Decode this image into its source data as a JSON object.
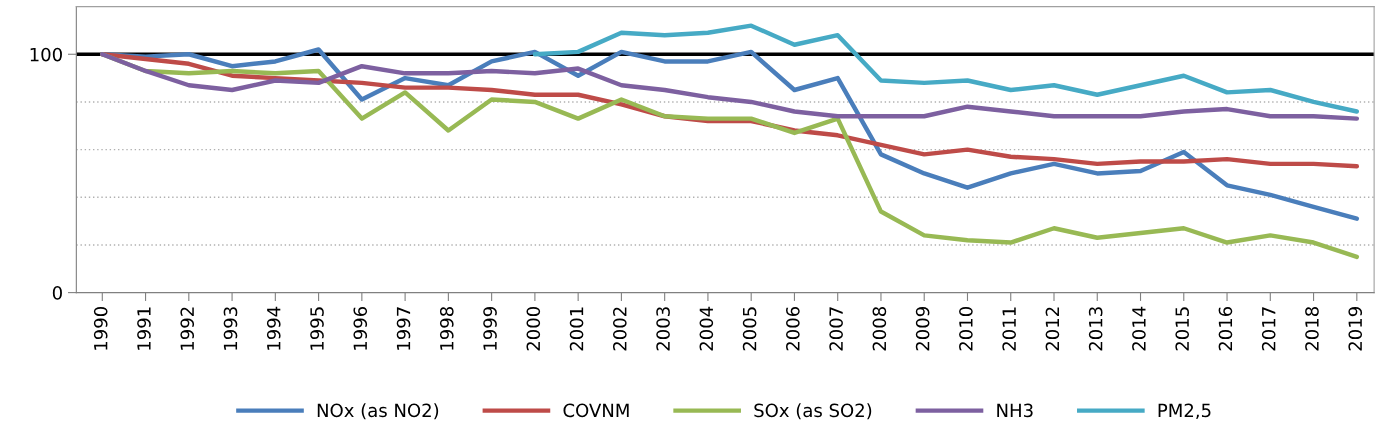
{
  "chart_data": {
    "type": "line",
    "categories": [
      "1990",
      "1991",
      "1992",
      "1993",
      "1994",
      "1995",
      "1996",
      "1997",
      "1998",
      "1999",
      "2000",
      "2001",
      "2002",
      "2003",
      "2004",
      "2005",
      "2006",
      "2007",
      "2008",
      "2009",
      "2010",
      "2011",
      "2012",
      "2013",
      "2014",
      "2015",
      "2016",
      "2017",
      "2018",
      "2019"
    ],
    "series": [
      {
        "name": "NOx (as NO2)",
        "color": "#4a7ebb",
        "values": [
          100,
          99,
          100,
          95,
          97,
          102,
          81,
          90,
          87,
          97,
          101,
          91,
          101,
          97,
          97,
          101,
          85,
          90,
          58,
          50,
          44,
          50,
          54,
          50,
          51,
          59,
          45,
          41,
          36,
          31
        ]
      },
      {
        "name": "COVNM",
        "color": "#be4b48",
        "values": [
          100,
          98,
          96,
          91,
          90,
          89,
          88,
          86,
          86,
          85,
          83,
          83,
          79,
          74,
          72,
          72,
          68,
          66,
          62,
          58,
          60,
          57,
          56,
          54,
          55,
          55,
          56,
          54,
          54,
          53
        ]
      },
      {
        "name": "SOx (as SO2)",
        "color": "#98b954",
        "values": [
          100,
          93,
          92,
          93,
          92,
          93,
          73,
          84,
          68,
          81,
          80,
          73,
          81,
          74,
          73,
          73,
          67,
          73,
          34,
          24,
          22,
          21,
          27,
          23,
          25,
          27,
          21,
          24,
          21,
          15
        ]
      },
      {
        "name": "NH3",
        "color": "#7d60a0",
        "values": [
          100,
          93,
          87,
          85,
          89,
          88,
          95,
          92,
          92,
          93,
          92,
          94,
          87,
          85,
          82,
          80,
          76,
          74,
          74,
          74,
          78,
          76,
          74,
          74,
          74,
          76,
          77,
          74,
          74,
          73
        ]
      },
      {
        "name": "PM2,5",
        "color": "#46aac5",
        "values": [
          null,
          null,
          null,
          null,
          null,
          null,
          null,
          null,
          null,
          null,
          100,
          101,
          109,
          108,
          109,
          112,
          104,
          108,
          89,
          88,
          89,
          85,
          87,
          83,
          87,
          91,
          84,
          85,
          80,
          76
        ]
      }
    ],
    "ylim": [
      0,
      120
    ],
    "yticks": [
      0,
      {
        "value": 20,
        "label": null
      },
      {
        "value": 40,
        "label": null
      },
      {
        "value": 60,
        "label": null
      },
      {
        "value": 80,
        "label": null
      },
      100
    ],
    "grid": "y",
    "ref_lines": [
      {
        "axis": "y",
        "value": 100,
        "color": "#000000"
      }
    ],
    "legend": "bottom",
    "marker": "none",
    "line_style": "solid"
  }
}
